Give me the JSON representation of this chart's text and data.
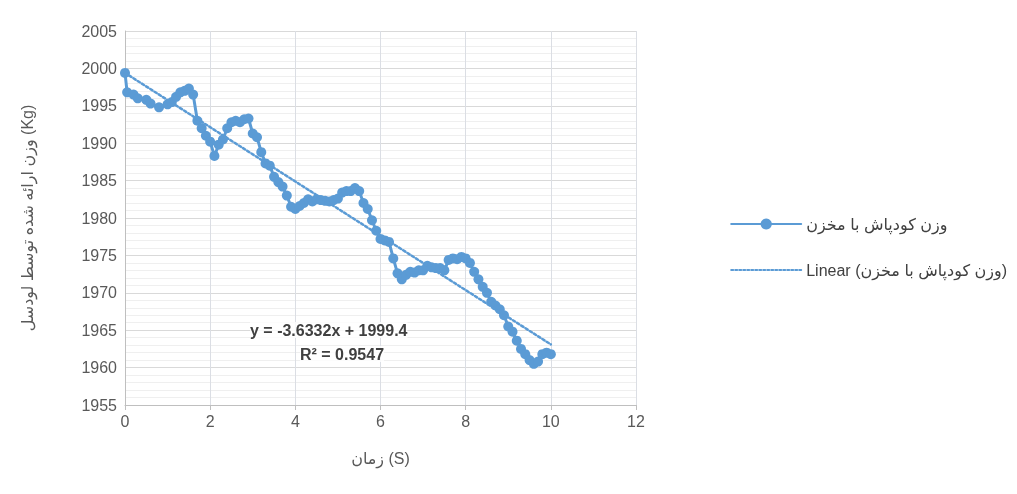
{
  "chart_data": {
    "type": "line",
    "xlabel": "زمان (S)",
    "ylabel": "وزن ارائه شده توسط لودسل (Kg)",
    "xlim": [
      0,
      12
    ],
    "xticks": [
      0,
      2,
      4,
      6,
      8,
      10,
      12
    ],
    "ylim": [
      1955,
      2005
    ],
    "yticks": [
      1955,
      1960,
      1965,
      1970,
      1975,
      1980,
      1985,
      1990,
      1995,
      2000,
      2005
    ],
    "grid": true,
    "legend": "right",
    "marker": "circle",
    "annotations": [
      "y = -3.6332x + 1999.4",
      "R² = 0.9547"
    ],
    "series": [
      {
        "name": "وزن کودپاش با مخزن",
        "color": "#5b9bd5",
        "x": [
          0,
          0.05,
          0.2,
          0.3,
          0.5,
          0.6,
          0.8,
          1.0,
          1.1,
          1.2,
          1.3,
          1.4,
          1.5,
          1.6,
          1.7,
          1.8,
          1.9,
          2.0,
          2.1,
          2.2,
          2.3,
          2.4,
          2.5,
          2.6,
          2.7,
          2.8,
          2.9,
          3.0,
          3.1,
          3.2,
          3.3,
          3.4,
          3.5,
          3.6,
          3.7,
          3.8,
          3.9,
          4.0,
          4.1,
          4.2,
          4.3,
          4.4,
          4.5,
          4.6,
          4.7,
          4.8,
          4.9,
          5.0,
          5.1,
          5.2,
          5.3,
          5.4,
          5.5,
          5.6,
          5.7,
          5.8,
          5.9,
          6.0,
          6.1,
          6.2,
          6.3,
          6.4,
          6.5,
          6.6,
          6.7,
          6.8,
          6.9,
          7.0,
          7.1,
          7.2,
          7.3,
          7.4,
          7.5,
          7.6,
          7.7,
          7.8,
          7.9,
          8.0,
          8.1,
          8.2,
          8.3,
          8.4,
          8.5,
          8.6,
          8.7,
          8.8,
          8.9,
          9.0,
          9.1,
          9.2,
          9.3,
          9.4,
          9.5,
          9.6,
          9.7,
          9.8,
          9.9,
          10.0
        ],
        "values": [
          1999.4,
          1996.8,
          1996.5,
          1996.0,
          1995.8,
          1995.3,
          1994.8,
          1995.2,
          1995.5,
          1996.2,
          1996.8,
          1997.0,
          1997.3,
          1996.5,
          1993.0,
          1992.0,
          1991.0,
          1990.2,
          1988.3,
          1989.8,
          1990.5,
          1992.0,
          1992.8,
          1993.0,
          1992.8,
          1993.2,
          1993.3,
          1991.3,
          1990.8,
          1988.8,
          1987.3,
          1987.0,
          1985.5,
          1984.8,
          1984.2,
          1983.0,
          1981.5,
          1981.2,
          1981.6,
          1982.0,
          1982.5,
          1982.2,
          1982.5,
          1982.4,
          1982.3,
          1982.2,
          1982.4,
          1982.6,
          1983.4,
          1983.6,
          1983.6,
          1984.0,
          1983.6,
          1982.0,
          1981.2,
          1979.7,
          1978.3,
          1977.2,
          1977.0,
          1976.8,
          1974.6,
          1972.6,
          1971.8,
          1972.4,
          1972.8,
          1972.7,
          1973.0,
          1973.0,
          1973.6,
          1973.4,
          1973.3,
          1973.3,
          1973.0,
          1974.4,
          1974.6,
          1974.5,
          1974.8,
          1974.6,
          1974.0,
          1972.8,
          1971.8,
          1970.8,
          1970.0,
          1968.8,
          1968.3,
          1967.8,
          1967.0,
          1965.5,
          1964.8,
          1963.6,
          1962.5,
          1961.8,
          1961.0,
          1960.5,
          1960.8,
          1961.8,
          1962.0,
          1961.8
        ]
      },
      {
        "name": "Linear (وزن کودپاش با مخزن)",
        "color": "#5b9bd5",
        "type": "line",
        "marker": "none",
        "line_style": "dotted",
        "x": [
          0,
          10
        ],
        "values": [
          1999.4,
          1963.1
        ]
      }
    ]
  }
}
